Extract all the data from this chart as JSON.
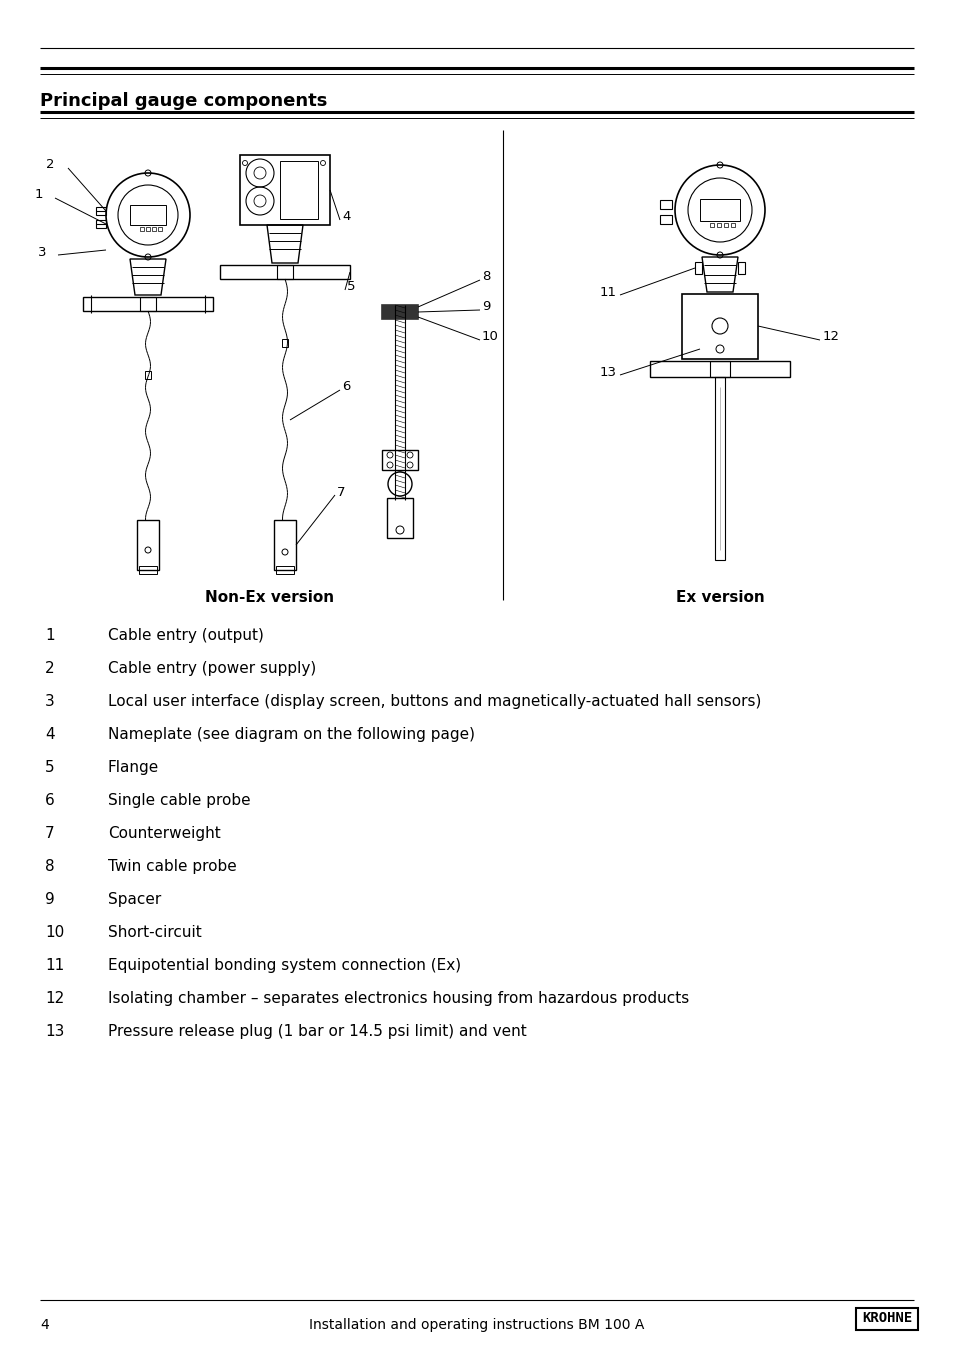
{
  "bg_color": "#ffffff",
  "section_title": "Principal gauge components",
  "items": [
    {
      "num": "1",
      "text": "Cable entry (output)"
    },
    {
      "num": "2",
      "text": "Cable entry (power supply)"
    },
    {
      "num": "3",
      "text": "Local user interface (display screen, buttons and magnetically-actuated hall sensors)"
    },
    {
      "num": "4",
      "text": "Nameplate (see diagram on the following page)"
    },
    {
      "num": "5",
      "text": "Flange"
    },
    {
      "num": "6",
      "text": "Single cable probe"
    },
    {
      "num": "7",
      "text": "Counterweight"
    },
    {
      "num": "8",
      "text": "Twin cable probe"
    },
    {
      "num": "9",
      "text": "Spacer"
    },
    {
      "num": "10",
      "text": "Short-circuit"
    },
    {
      "num": "11",
      "text": "Equipotential bonding system connection (Ex)"
    },
    {
      "num": "12",
      "text": "Isolating chamber – separates electronics housing from hazardous products"
    },
    {
      "num": "13",
      "text": "Pressure release plug (1 bar or 14.5 psi limit) and vent"
    }
  ],
  "footer_page": "4",
  "footer_center": "Installation and operating instructions BM 100 A",
  "footer_brand": "KROHNE",
  "non_ex_label": "Non-Ex version",
  "ex_label": "Ex version"
}
